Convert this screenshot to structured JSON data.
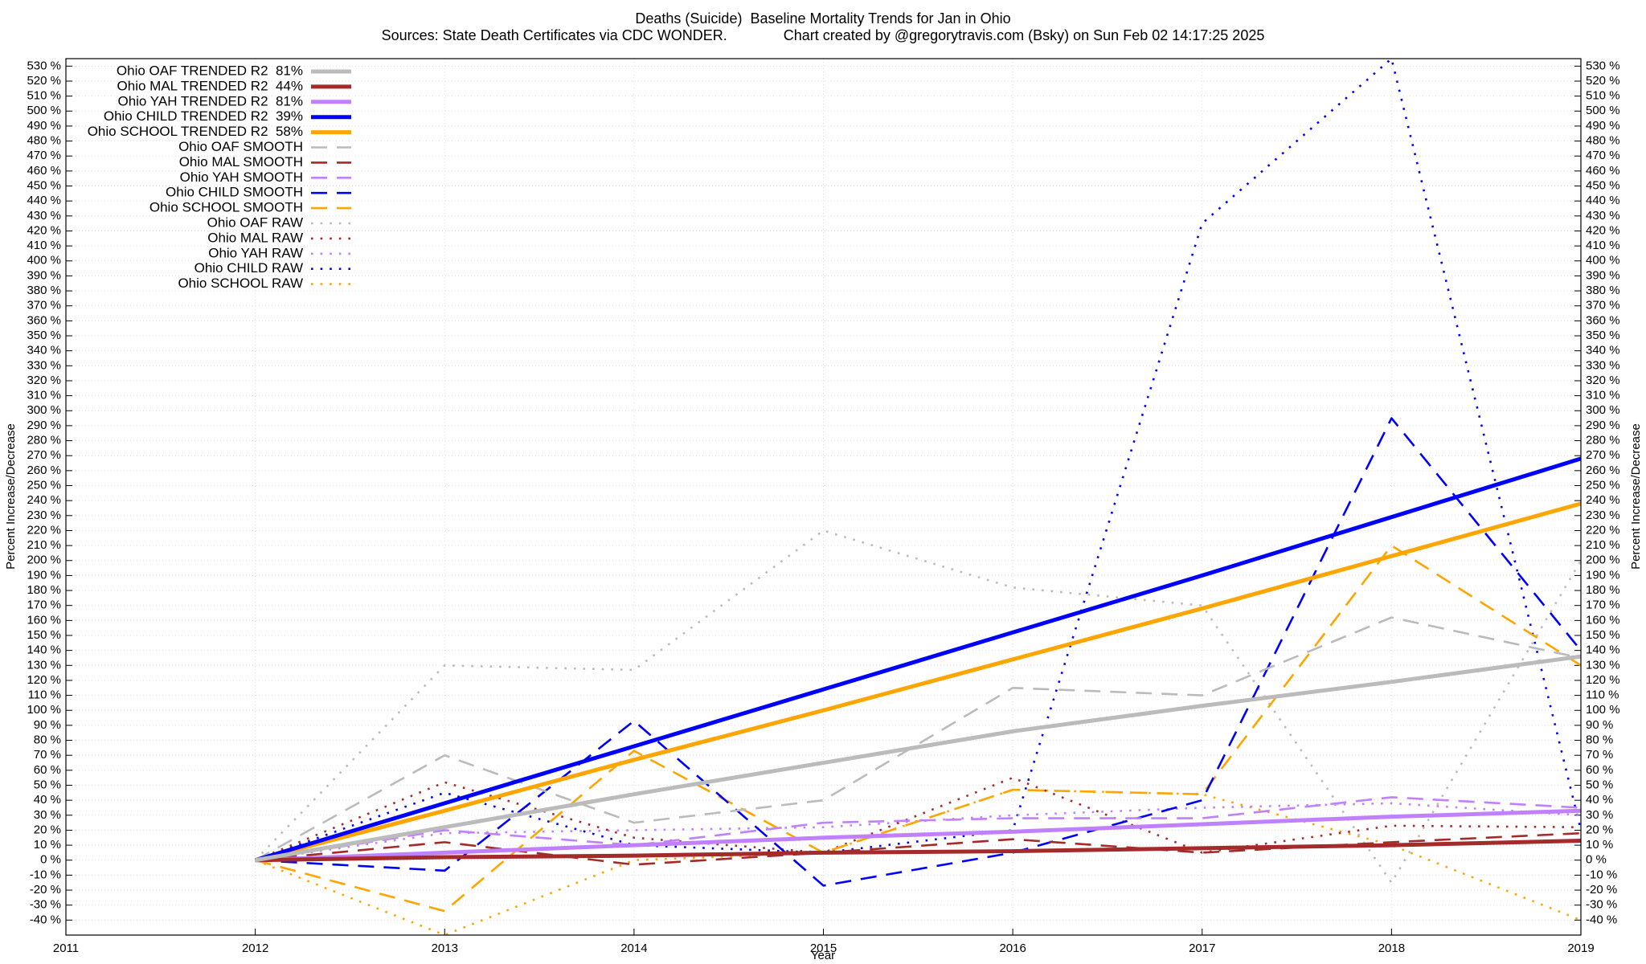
{
  "chart_data": {
    "type": "line",
    "title": "Deaths (Suicide)  Baseline Mortality Trends for Jan in Ohio",
    "subtitle": "Sources: State Death Certificates via CDC WONDER.              Chart created by @gregorytravis.com (Bsky) on Sun Feb 02 14:17:25 2025",
    "x_label": "Year",
    "y_label": "Percent Increase/Decrease",
    "x": [
      2012,
      2013,
      2014,
      2015,
      2016,
      2017,
      2018,
      2019
    ],
    "xlim": [
      2011,
      2019
    ],
    "xticks": [
      2011,
      2012,
      2013,
      2014,
      2015,
      2016,
      2017,
      2018,
      2019
    ],
    "ylim": [
      -50,
      535
    ],
    "yticks": [
      {
        "value": -40,
        "label": "-40 %"
      },
      {
        "value": -30,
        "label": "-30 %"
      },
      {
        "value": -20,
        "label": "-20 %"
      },
      {
        "value": -10,
        "label": "-10 %"
      },
      {
        "value": 0,
        "label": "0 %"
      },
      {
        "value": 10,
        "label": "10 %"
      },
      {
        "value": 20,
        "label": "20 %"
      },
      {
        "value": 30,
        "label": "30 %"
      },
      {
        "value": 40,
        "label": "40 %"
      },
      {
        "value": 50,
        "label": "50 %"
      },
      {
        "value": 60,
        "label": "60 %"
      },
      {
        "value": 70,
        "label": "70 %"
      },
      {
        "value": 80,
        "label": "80 %"
      },
      {
        "value": 90,
        "label": "90 %"
      },
      {
        "value": 100,
        "label": "100 %"
      },
      {
        "value": 110,
        "label": "110 %"
      },
      {
        "value": 120,
        "label": "120 %"
      },
      {
        "value": 130,
        "label": "130 %"
      },
      {
        "value": 140,
        "label": "140 %"
      },
      {
        "value": 150,
        "label": "150 %"
      },
      {
        "value": 160,
        "label": "160 %"
      },
      {
        "value": 170,
        "label": "170 %"
      },
      {
        "value": 180,
        "label": "180 %"
      },
      {
        "value": 190,
        "label": "190 %"
      },
      {
        "value": 200,
        "label": "200 %"
      },
      {
        "value": 210,
        "label": "210 %"
      },
      {
        "value": 220,
        "label": "220 %"
      },
      {
        "value": 230,
        "label": "230 %"
      },
      {
        "value": 240,
        "label": "240 %"
      },
      {
        "value": 250,
        "label": "250 %"
      },
      {
        "value": 260,
        "label": "260 %"
      },
      {
        "value": 270,
        "label": "270 %"
      },
      {
        "value": 280,
        "label": "280 %"
      },
      {
        "value": 290,
        "label": "290 %"
      },
      {
        "value": 300,
        "label": "300 %"
      },
      {
        "value": 310,
        "label": "310 %"
      },
      {
        "value": 320,
        "label": "320 %"
      },
      {
        "value": 330,
        "label": "330 %"
      },
      {
        "value": 340,
        "label": "340 %"
      },
      {
        "value": 350,
        "label": "350 %"
      },
      {
        "value": 360,
        "label": "360 %"
      },
      {
        "value": 370,
        "label": "370 %"
      },
      {
        "value": 380,
        "label": "380 %"
      },
      {
        "value": 390,
        "label": "390 %"
      },
      {
        "value": 400,
        "label": "400 %"
      },
      {
        "value": 410,
        "label": "410 %"
      },
      {
        "value": 420,
        "label": "420 %"
      },
      {
        "value": 430,
        "label": "430 %"
      },
      {
        "value": 440,
        "label": "440 %"
      },
      {
        "value": 450,
        "label": "450 %"
      },
      {
        "value": 460,
        "label": "460 %"
      },
      {
        "value": 470,
        "label": "470 %"
      },
      {
        "value": 480,
        "label": "480 %"
      },
      {
        "value": 490,
        "label": "490 %"
      },
      {
        "value": 500,
        "label": "500 %"
      },
      {
        "value": 510,
        "label": "510 %"
      },
      {
        "value": 520,
        "label": "520 %"
      },
      {
        "value": 530,
        "label": "530 %"
      }
    ],
    "grid": true,
    "legend": "top-left",
    "series": [
      {
        "name": "Ohio OAF TRENDED R2  81%",
        "color": "#bbbbbb",
        "style": "solid",
        "values": [
          0,
          22,
          44,
          65,
          86,
          103,
          119,
          136
        ]
      },
      {
        "name": "Ohio MAL TRENDED R2  44%",
        "color": "#a52a2a",
        "style": "solid",
        "values": [
          0,
          2,
          3,
          5,
          6,
          8,
          10,
          13
        ]
      },
      {
        "name": "Ohio YAH TRENDED R2  81%",
        "color": "#c080ff",
        "style": "solid",
        "values": [
          0,
          5,
          10,
          15,
          19,
          24,
          29,
          33
        ]
      },
      {
        "name": "Ohio CHILD TRENDED R2  39%",
        "color": "#0000ff",
        "style": "solid",
        "values": [
          0,
          38,
          76,
          114,
          152,
          190,
          229,
          268
        ]
      },
      {
        "name": "Ohio SCHOOL TRENDED R2  58%",
        "color": "#ffa500",
        "style": "solid",
        "values": [
          0,
          33,
          67,
          100,
          134,
          168,
          203,
          238
        ]
      },
      {
        "name": "Ohio OAF SMOOTH",
        "color": "#bbbbbb",
        "style": "dashed",
        "values": [
          0,
          70,
          25,
          40,
          115,
          110,
          162,
          135
        ]
      },
      {
        "name": "Ohio MAL SMOOTH",
        "color": "#a52a2a",
        "style": "dashed",
        "values": [
          0,
          12,
          -3,
          5,
          14,
          5,
          12,
          18
        ]
      },
      {
        "name": "Ohio YAH SMOOTH",
        "color": "#c080ff",
        "style": "dashed",
        "values": [
          0,
          20,
          10,
          25,
          28,
          28,
          42,
          35
        ]
      },
      {
        "name": "Ohio CHILD SMOOTH",
        "color": "#0000ff",
        "style": "dashed",
        "values": [
          0,
          -7,
          93,
          -17,
          5,
          40,
          295,
          140
        ]
      },
      {
        "name": "Ohio SCHOOL SMOOTH",
        "color": "#ffa500",
        "style": "dashed",
        "values": [
          0,
          -34,
          73,
          5,
          47,
          44,
          210,
          130
        ]
      },
      {
        "name": "Ohio OAF RAW",
        "color": "#bbbbbb",
        "style": "dotted",
        "values": [
          0,
          130,
          127,
          220,
          182,
          170,
          -15,
          200
        ]
      },
      {
        "name": "Ohio MAL RAW",
        "color": "#a52a2a",
        "style": "dotted",
        "values": [
          0,
          52,
          15,
          5,
          55,
          5,
          23,
          22
        ]
      },
      {
        "name": "Ohio YAH RAW",
        "color": "#c080ff",
        "style": "dotted",
        "values": [
          0,
          18,
          20,
          22,
          30,
          35,
          38,
          30
        ]
      },
      {
        "name": "Ohio CHILD RAW",
        "color": "#0000ff",
        "style": "dotted",
        "values": [
          0,
          45,
          10,
          5,
          20,
          425,
          535,
          20
        ]
      },
      {
        "name": "Ohio SCHOOL RAW",
        "color": "#ffa500",
        "style": "dotted",
        "values": [
          0,
          -50,
          0,
          5,
          47,
          44,
          10,
          -40
        ]
      }
    ]
  }
}
